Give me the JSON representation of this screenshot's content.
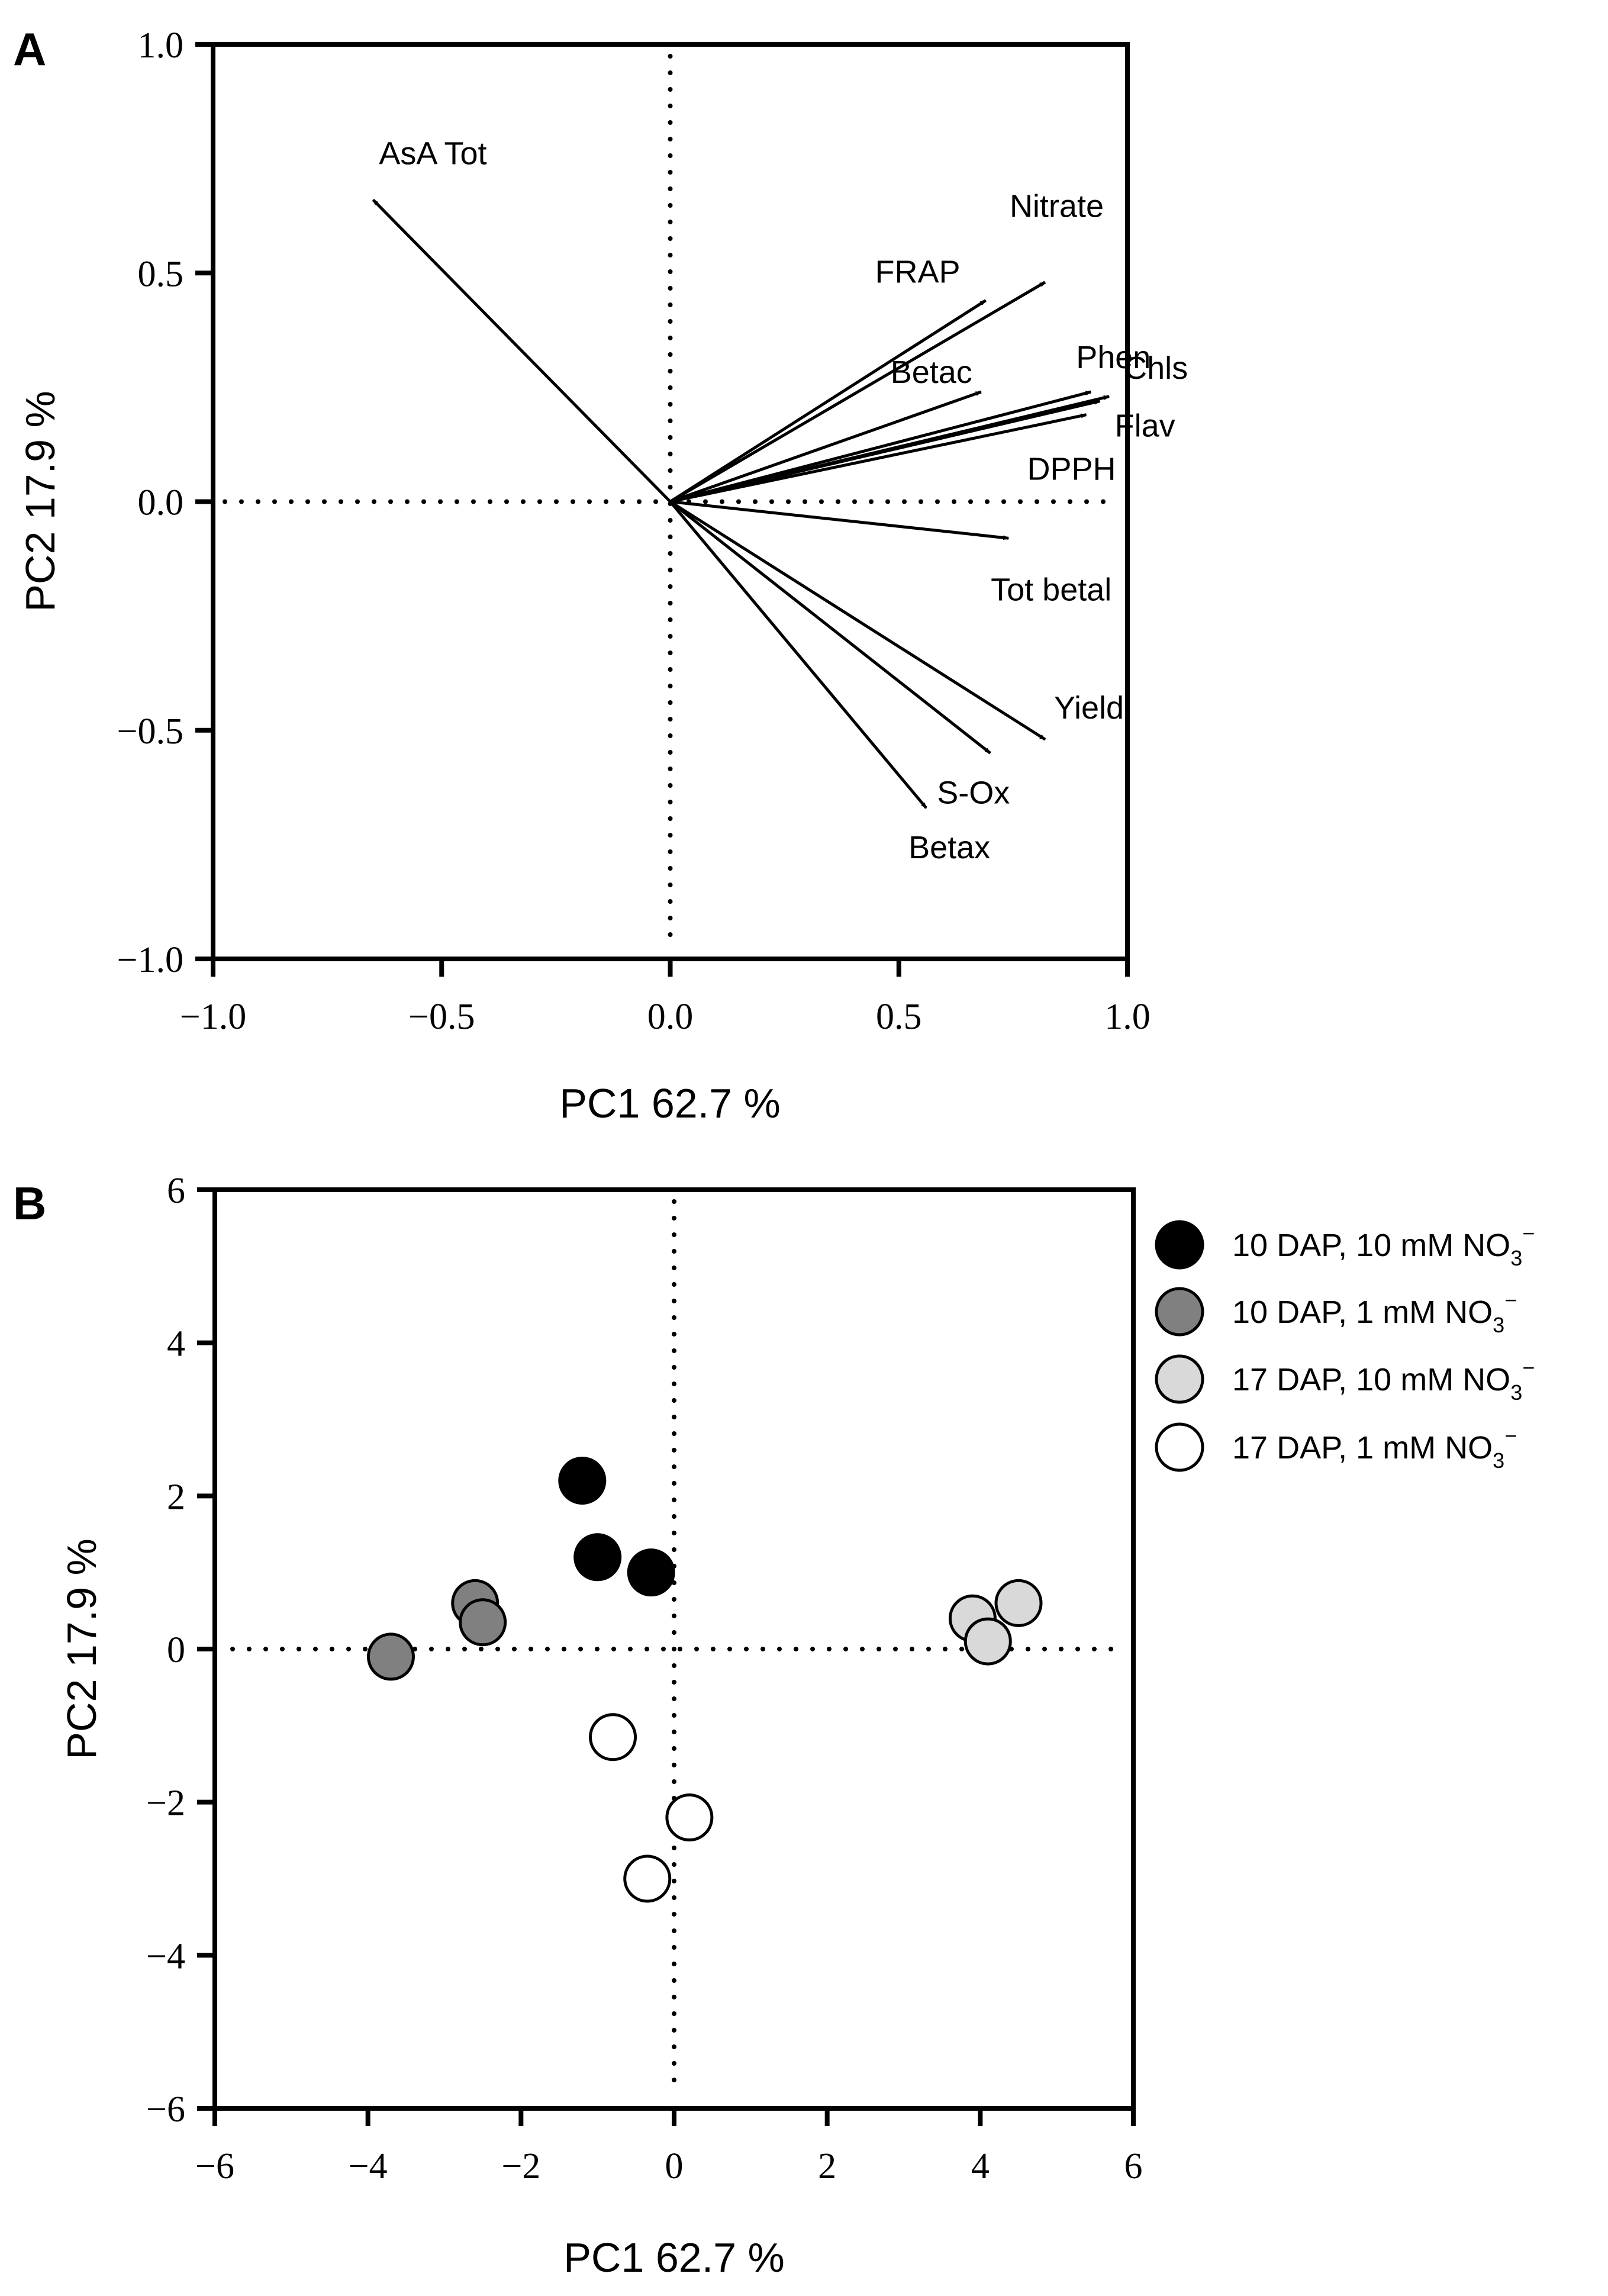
{
  "chart_data": [
    {
      "panel": "A",
      "type": "scatter",
      "subtype": "pca-loadings-biplot",
      "xlabel": "PC1 62.7 %",
      "ylabel": "PC2 17.9 %",
      "xlim": [
        -1.0,
        1.0
      ],
      "ylim": [
        -1.0,
        1.0
      ],
      "xticks": [
        "−1.0",
        "−0.5",
        "0.0",
        "0.5",
        "1.0"
      ],
      "yticks": [
        "−1.0",
        "−0.5",
        "0.0",
        "0.5",
        "1.0"
      ],
      "xtick_values": [
        -1.0,
        -0.5,
        0.0,
        0.5,
        1.0
      ],
      "ytick_values": [
        -1.0,
        -0.5,
        0.0,
        0.5,
        1.0
      ],
      "zero_lines": "dotted",
      "vectors": [
        {
          "label": "AsA Tot",
          "x": -0.65,
          "y": 0.66
        },
        {
          "label": "Nitrate",
          "x": 0.82,
          "y": 0.48
        },
        {
          "label": "FRAP",
          "x": 0.69,
          "y": 0.44
        },
        {
          "label": "Betac",
          "x": 0.68,
          "y": 0.24
        },
        {
          "label": "Phen",
          "x": 0.92,
          "y": 0.24
        },
        {
          "label": "Chls",
          "x": 0.96,
          "y": 0.23
        },
        {
          "label": "Flav",
          "x": 0.94,
          "y": 0.22
        },
        {
          "label": "DPPH",
          "x": 0.91,
          "y": 0.19
        },
        {
          "label": "Tot betal",
          "x": 0.74,
          "y": -0.08
        },
        {
          "label": "Yield",
          "x": 0.82,
          "y": -0.52
        },
        {
          "label": "S-Ox",
          "x": 0.7,
          "y": -0.55
        },
        {
          "label": "Betax",
          "x": 0.56,
          "y": -0.67
        }
      ]
    },
    {
      "panel": "B",
      "type": "scatter",
      "subtype": "pca-scores",
      "xlabel": "PC1 62.7 %",
      "ylabel": "PC2 17.9 %",
      "xlim": [
        -6,
        6
      ],
      "ylim": [
        -6,
        6
      ],
      "xticks": [
        "−6",
        "−4",
        "−2",
        "0",
        "2",
        "4",
        "6"
      ],
      "yticks": [
        "−6",
        "−4",
        "−2",
        "0",
        "2",
        "4",
        "6"
      ],
      "xtick_values": [
        -6,
        -4,
        -2,
        0,
        2,
        4,
        6
      ],
      "ytick_values": [
        -6,
        -4,
        -2,
        0,
        2,
        4,
        6
      ],
      "zero_lines": "dotted",
      "legend_position": "top-right",
      "series": [
        {
          "name": "10 DAP, 10 mM NO3−",
          "color": "#000000",
          "points": [
            [
              -1.2,
              2.2
            ],
            [
              -1.0,
              1.2
            ],
            [
              -0.3,
              1.0
            ]
          ]
        },
        {
          "name": "10 DAP, 1 mM NO3−",
          "color": "#808080",
          "points": [
            [
              -2.6,
              0.6
            ],
            [
              -2.5,
              0.35
            ],
            [
              -3.7,
              -0.1
            ]
          ]
        },
        {
          "name": "17 DAP, 10 mM NO3−",
          "color": "#d9d9d9",
          "points": [
            [
              3.9,
              0.4
            ],
            [
              4.5,
              0.6
            ],
            [
              4.1,
              0.1
            ]
          ]
        },
        {
          "name": "17 DAP, 1 mM NO3−",
          "color": "#ffffff",
          "points": [
            [
              -0.8,
              -1.15
            ],
            [
              0.2,
              -2.2
            ],
            [
              -0.35,
              -3.0
            ]
          ]
        }
      ]
    }
  ],
  "panels": {
    "a_letter": "A",
    "b_letter": "B"
  },
  "legend": {
    "items": [
      {
        "prefix": "10 DAP, 10 mM NO",
        "sub": "3",
        "sup": "−"
      },
      {
        "prefix": "10 DAP, 1 mM NO",
        "sub": "3",
        "sup": "−"
      },
      {
        "prefix": "17 DAP, 10 mM NO",
        "sub": "3",
        "sup": "−"
      },
      {
        "prefix": "17 DAP, 1 mM NO",
        "sub": "3",
        "sup": "−"
      }
    ]
  }
}
